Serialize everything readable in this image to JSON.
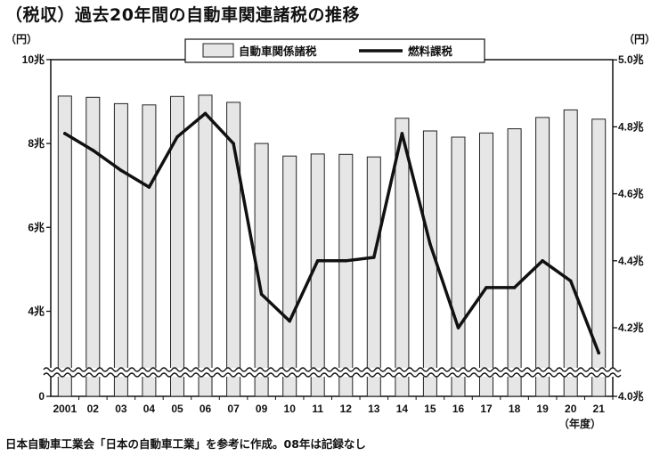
{
  "title": "（税収）過去20年間の自動車関連諸税の推移",
  "footnote": "日本自動車工業会「日本の自動車工業」を参考に作成。08年は記録なし",
  "chart_data": {
    "type": "bar",
    "categories": [
      "2001",
      "02",
      "03",
      "04",
      "05",
      "06",
      "07",
      "09",
      "10",
      "11",
      "12",
      "13",
      "14",
      "15",
      "16",
      "17",
      "18",
      "19",
      "20",
      "21"
    ],
    "xunit": "（年度）",
    "series": [
      {
        "name": "自動車関係諸税",
        "chart_type": "bar",
        "axis": "left",
        "values": [
          9.13,
          9.1,
          8.95,
          8.92,
          9.12,
          9.15,
          8.98,
          8.0,
          7.7,
          7.75,
          7.74,
          7.68,
          8.6,
          8.3,
          8.15,
          8.25,
          8.35,
          8.62,
          8.8,
          8.58
        ]
      },
      {
        "name": "燃料課税",
        "chart_type": "line",
        "axis": "right",
        "values": [
          4.78,
          4.73,
          4.67,
          4.62,
          4.77,
          4.84,
          4.75,
          4.3,
          4.22,
          4.4,
          4.4,
          4.41,
          4.78,
          4.45,
          4.2,
          4.32,
          4.32,
          4.4,
          4.34,
          4.14
        ]
      }
    ],
    "left_axis": {
      "unit": "（円）",
      "ylim": [
        0,
        10
      ],
      "broken": true,
      "ticks": [
        {
          "value": 0,
          "label": "0"
        },
        {
          "value": 4,
          "label": "4兆"
        },
        {
          "value": 6,
          "label": "6兆"
        },
        {
          "value": 8,
          "label": "8兆"
        },
        {
          "value": 10,
          "label": "10兆"
        }
      ]
    },
    "right_axis": {
      "unit": "（円）",
      "ylim": [
        4.0,
        5.0
      ],
      "broken": true,
      "ticks": [
        {
          "value": 4.0,
          "label": "4.0兆"
        },
        {
          "value": 4.2,
          "label": "4.2兆"
        },
        {
          "value": 4.4,
          "label": "4.4兆"
        },
        {
          "value": 4.6,
          "label": "4.6兆"
        },
        {
          "value": 4.8,
          "label": "4.8兆"
        },
        {
          "value": 5.0,
          "label": "5.0兆"
        }
      ]
    },
    "grid": false,
    "legend_position": "top",
    "colors": {
      "bar_fill": "#e6e6e6",
      "bar_stroke": "#222222",
      "line": "#111111"
    }
  }
}
